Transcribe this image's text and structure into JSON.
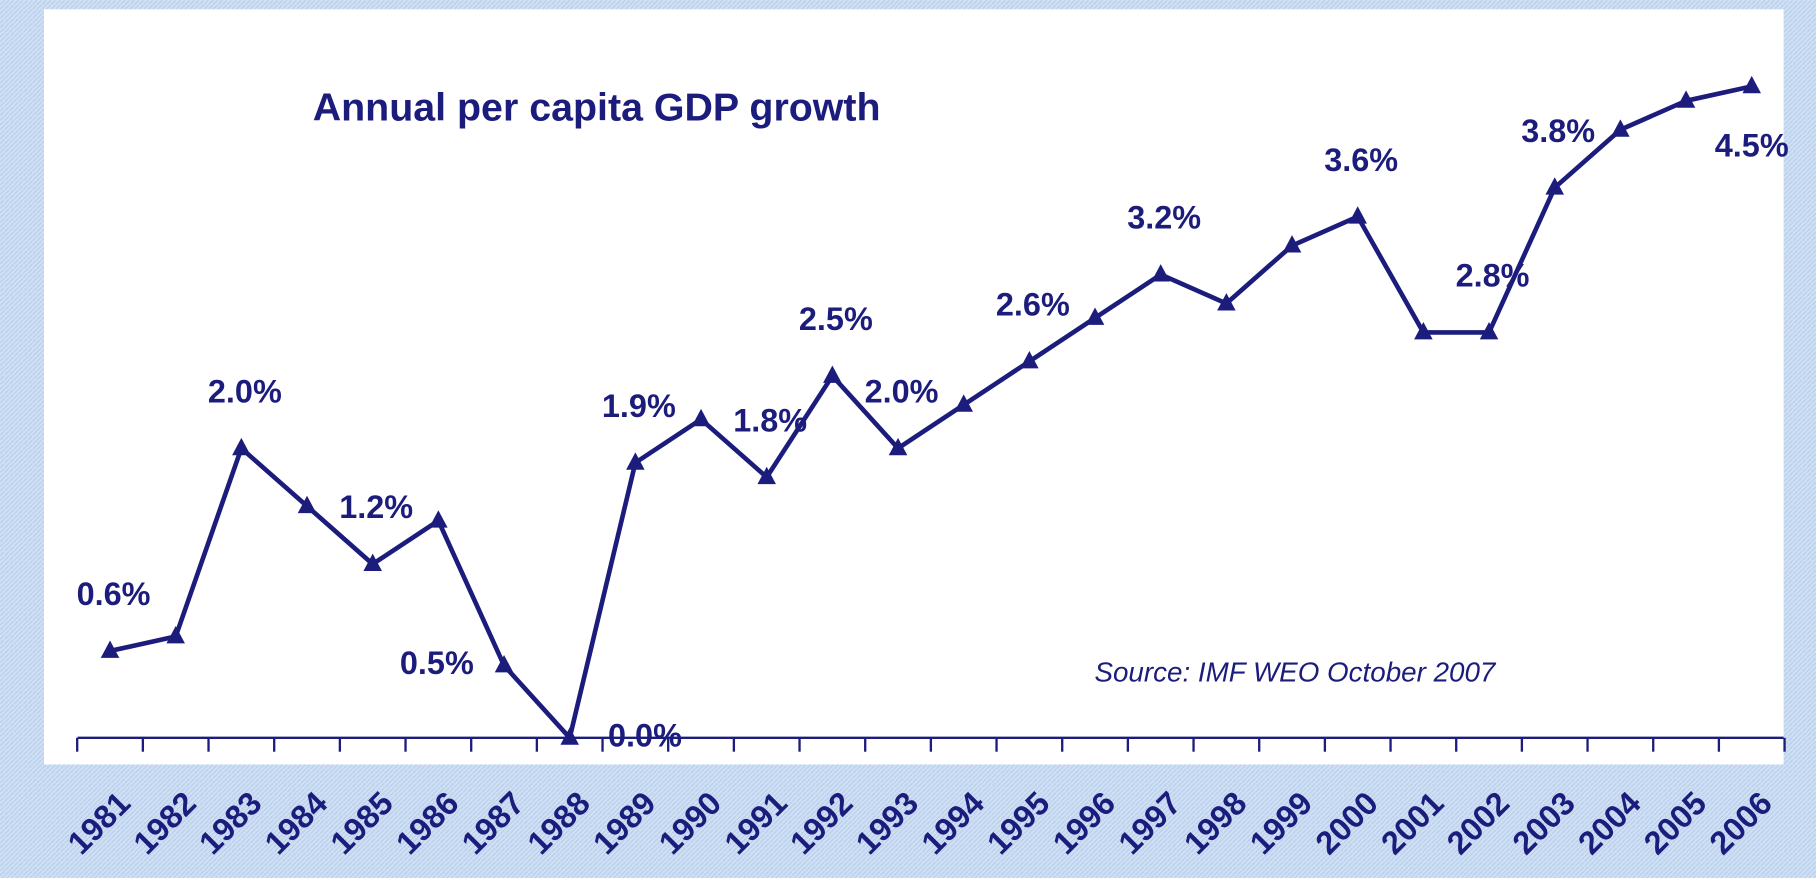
{
  "chart_data": {
    "type": "line",
    "title": "Annual per capita GDP growth",
    "annotation": "Source: IMF WEO October 2007",
    "categories": [
      "1981",
      "1982",
      "1983",
      "1984",
      "1985",
      "1986",
      "1987",
      "1988",
      "1989",
      "1990",
      "1991",
      "1992",
      "1993",
      "1994",
      "1995",
      "1996",
      "1997",
      "1998",
      "1999",
      "2000",
      "2001",
      "2002",
      "2003",
      "2004",
      "2005",
      "2006"
    ],
    "series": [
      {
        "color": "#1c1c7c",
        "marker": "triangle",
        "values": [
          0.6,
          0.7,
          2.0,
          1.6,
          1.2,
          1.5,
          0.5,
          0.0,
          1.9,
          2.2,
          1.8,
          2.5,
          2.0,
          2.3,
          2.6,
          2.9,
          3.2,
          3.0,
          3.4,
          3.6,
          2.8,
          2.8,
          3.8,
          4.2,
          4.4,
          4.5
        ],
        "value_labels": [
          "0.6%",
          null,
          "2.0%",
          null,
          "1.2%",
          null,
          "0.5%",
          "0.0%",
          "1.9%",
          null,
          "1.8%",
          "2.5%",
          "2.0%",
          null,
          "2.6%",
          null,
          "3.2%",
          null,
          null,
          "3.6%",
          null,
          "2.8%",
          "3.8%",
          null,
          null,
          "4.5%"
        ]
      }
    ],
    "ylim": [
      0,
      5
    ]
  }
}
